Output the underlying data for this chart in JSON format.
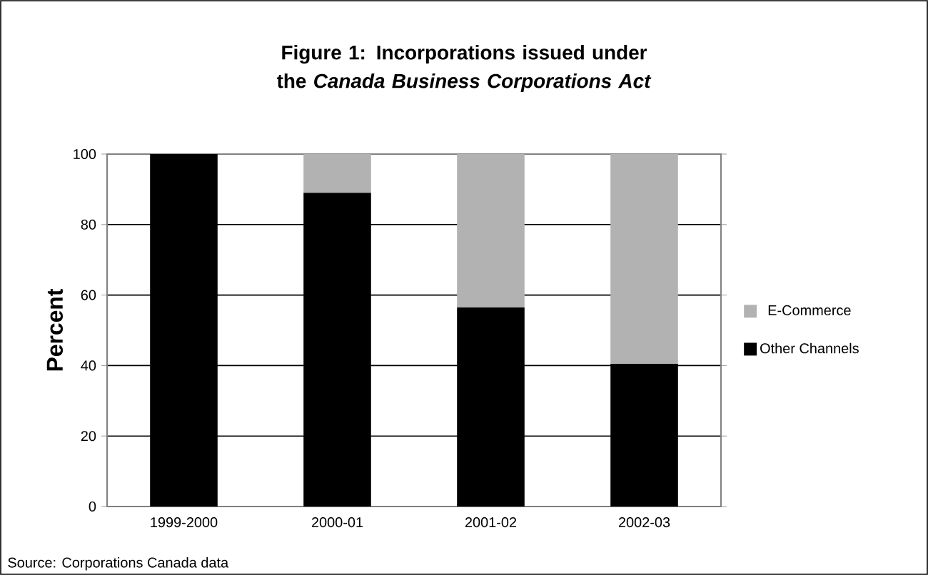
{
  "chart_data": {
    "type": "bar",
    "stacked": true,
    "title": "Figure 1: Incorporations issued under the *Canada Business Corporations Act*",
    "ylabel": "Percent",
    "categories": [
      "1999-2000",
      "2000-01",
      "2001-02",
      "2002-03"
    ],
    "series": [
      {
        "name": "Other Channels",
        "color": "#000000",
        "values": [
          100,
          89,
          56.5,
          40.5
        ]
      },
      {
        "name": "E-Commerce",
        "color": "#b2b2b2",
        "values": [
          0,
          11,
          43.5,
          59.5
        ]
      }
    ],
    "ylim": [
      0,
      100
    ],
    "yticks": [
      0,
      20,
      40,
      60,
      80,
      100
    ],
    "grid": "y",
    "legend": "right",
    "annotations": [
      "Source: Corporations Canada data"
    ]
  }
}
